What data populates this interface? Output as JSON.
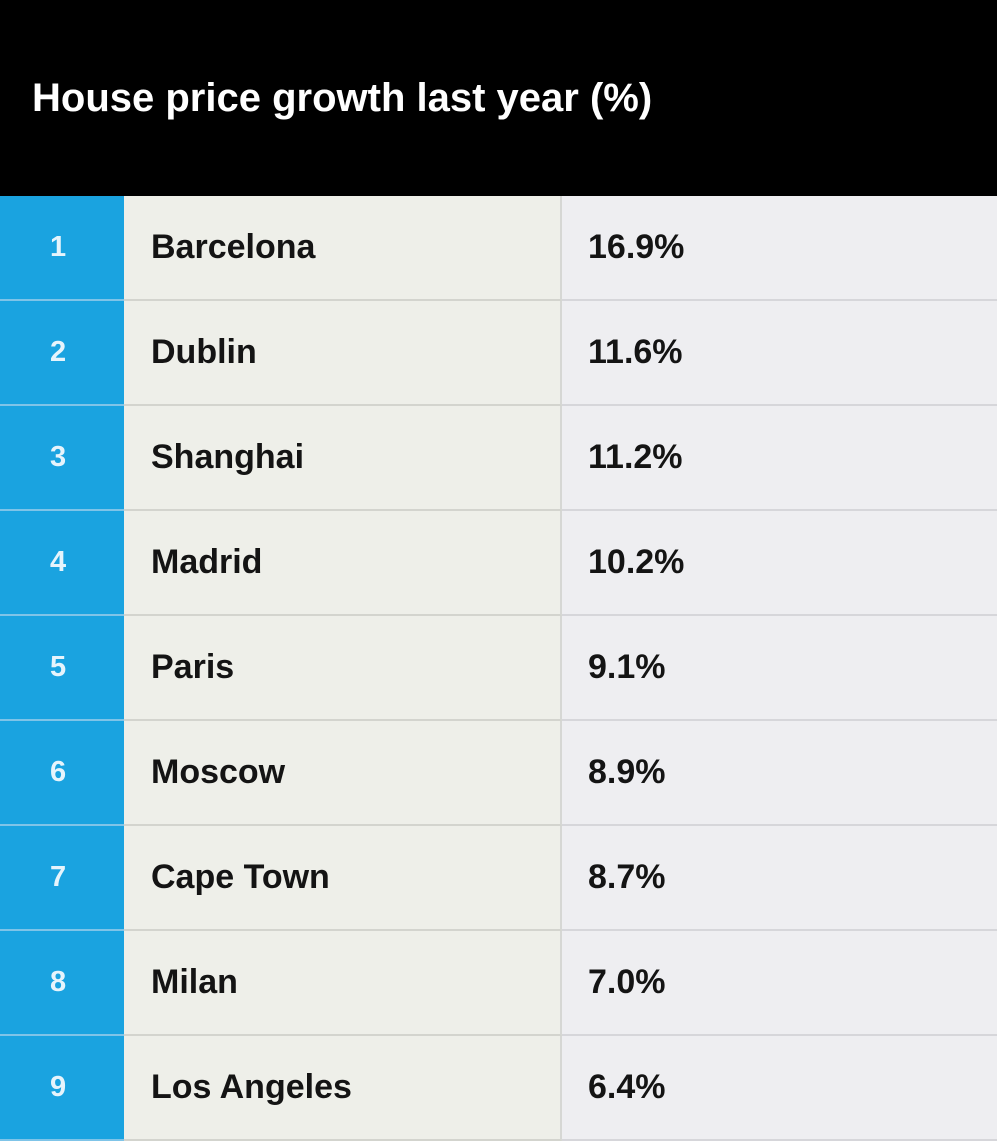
{
  "title": "House price growth last year (%)",
  "colors": {
    "header_background": "#000000",
    "title_text": "#ffffff",
    "rank_column": "#1aa3e0",
    "city_column": "#eeefe9",
    "value_column": "#eeeef1",
    "rank_text": "#e6f4fc",
    "cell_text": "#141414"
  },
  "chart_data": {
    "type": "table",
    "title": "House price growth last year (%)",
    "columns": [],
    "rows": [
      {
        "rank": "1",
        "city": "Barcelona",
        "value_label": "16.9%",
        "value": 16.9
      },
      {
        "rank": "2",
        "city": "Dublin",
        "value_label": "11.6%",
        "value": 11.6
      },
      {
        "rank": "3",
        "city": "Shanghai",
        "value_label": "11.2%",
        "value": 11.2
      },
      {
        "rank": "4",
        "city": "Madrid",
        "value_label": "10.2%",
        "value": 10.2
      },
      {
        "rank": "5",
        "city": "Paris",
        "value_label": "9.1%",
        "value": 9.1
      },
      {
        "rank": "6",
        "city": "Moscow",
        "value_label": "8.9%",
        "value": 8.9
      },
      {
        "rank": "7",
        "city": "Cape Town",
        "value_label": "8.7%",
        "value": 8.7
      },
      {
        "rank": "8",
        "city": "Milan",
        "value_label": "7.0%",
        "value": 7.0
      },
      {
        "rank": "9",
        "city": "Los Angeles",
        "value_label": "6.4%",
        "value": 6.4
      }
    ]
  }
}
